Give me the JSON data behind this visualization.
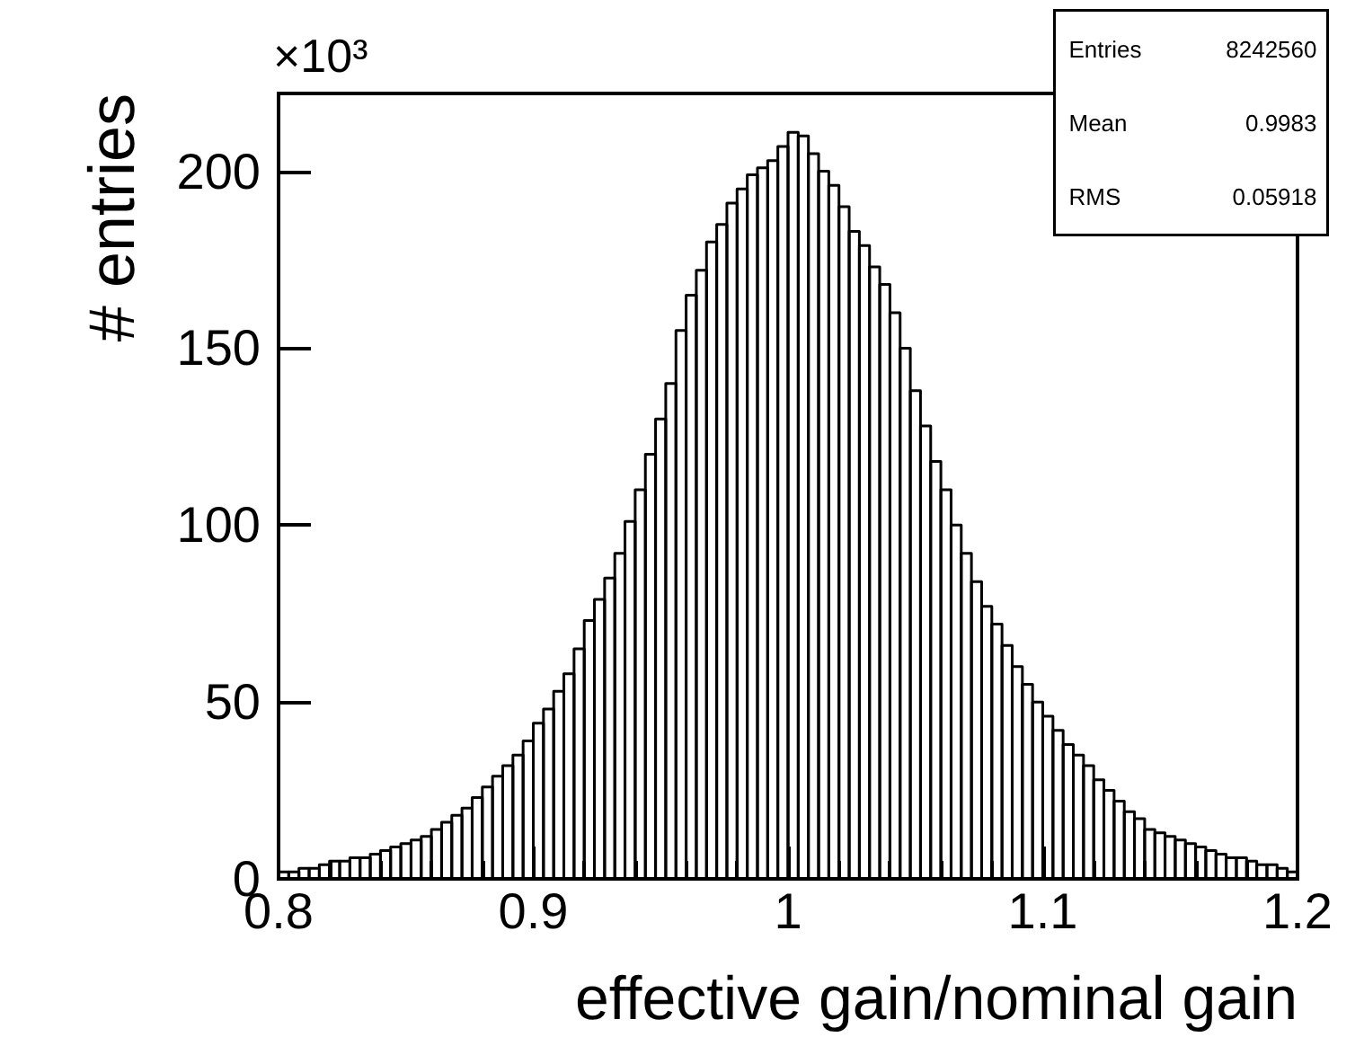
{
  "chart_data": {
    "type": "histogram",
    "xlabel": "effective gain/nominal gain",
    "ylabel": "# entries",
    "annotations": [
      "×10³",
      "Entries 8242560",
      "Mean 0.9983",
      "RMS 0.05918"
    ],
    "bins": [
      0.8,
      0.804,
      0.808,
      0.812,
      0.816,
      0.82,
      0.824,
      0.828,
      0.832,
      0.836,
      0.84,
      0.844,
      0.848,
      0.852,
      0.856,
      0.86,
      0.864,
      0.868,
      0.872,
      0.876,
      0.88,
      0.884,
      0.888,
      0.892,
      0.896,
      0.9,
      0.904,
      0.908,
      0.912,
      0.916,
      0.92,
      0.924,
      0.928,
      0.932,
      0.936,
      0.94,
      0.944,
      0.948,
      0.952,
      0.956,
      0.96,
      0.964,
      0.968,
      0.972,
      0.976,
      0.98,
      0.984,
      0.988,
      0.992,
      0.996,
      1.0,
      1.004,
      1.008,
      1.012,
      1.016,
      1.02,
      1.024,
      1.028,
      1.032,
      1.036,
      1.04,
      1.044,
      1.048,
      1.052,
      1.056,
      1.06,
      1.064,
      1.068,
      1.072,
      1.076,
      1.08,
      1.084,
      1.088,
      1.092,
      1.096,
      1.1,
      1.104,
      1.108,
      1.112,
      1.116,
      1.12,
      1.124,
      1.128,
      1.132,
      1.136,
      1.14,
      1.144,
      1.148,
      1.152,
      1.156,
      1.16,
      1.164,
      1.168,
      1.172,
      1.176,
      1.18,
      1.184,
      1.188,
      1.192,
      1.196,
      1.2
    ],
    "values": [
      2,
      2,
      3,
      3,
      4,
      5,
      5,
      6,
      6,
      7,
      8,
      9,
      10,
      11,
      12,
      14,
      16,
      18,
      20,
      23,
      26,
      29,
      32,
      35,
      39,
      44,
      48,
      53,
      58,
      65,
      73,
      79,
      85,
      92,
      101,
      110,
      120,
      130,
      140,
      155,
      165,
      172,
      180,
      185,
      191,
      195,
      199,
      201,
      203,
      207,
      211,
      210,
      205,
      200,
      196,
      190,
      183,
      179,
      173,
      168,
      160,
      150,
      138,
      128,
      118,
      110,
      100,
      92,
      84,
      77,
      72,
      66,
      60,
      55,
      50,
      46,
      42,
      38,
      35,
      32,
      28,
      25,
      22,
      19,
      17,
      14,
      13,
      12,
      11,
      10,
      9,
      8,
      7,
      6,
      6,
      5,
      4,
      4,
      3,
      2
    ],
    "color": "#000000",
    "xlim": [
      0.8,
      1.2
    ],
    "xticks": [
      0.8,
      0.9,
      1,
      1.1,
      1.2
    ],
    "ylim": [
      0,
      222
    ],
    "yticks": [
      0,
      50,
      100,
      150,
      200
    ]
  }
}
